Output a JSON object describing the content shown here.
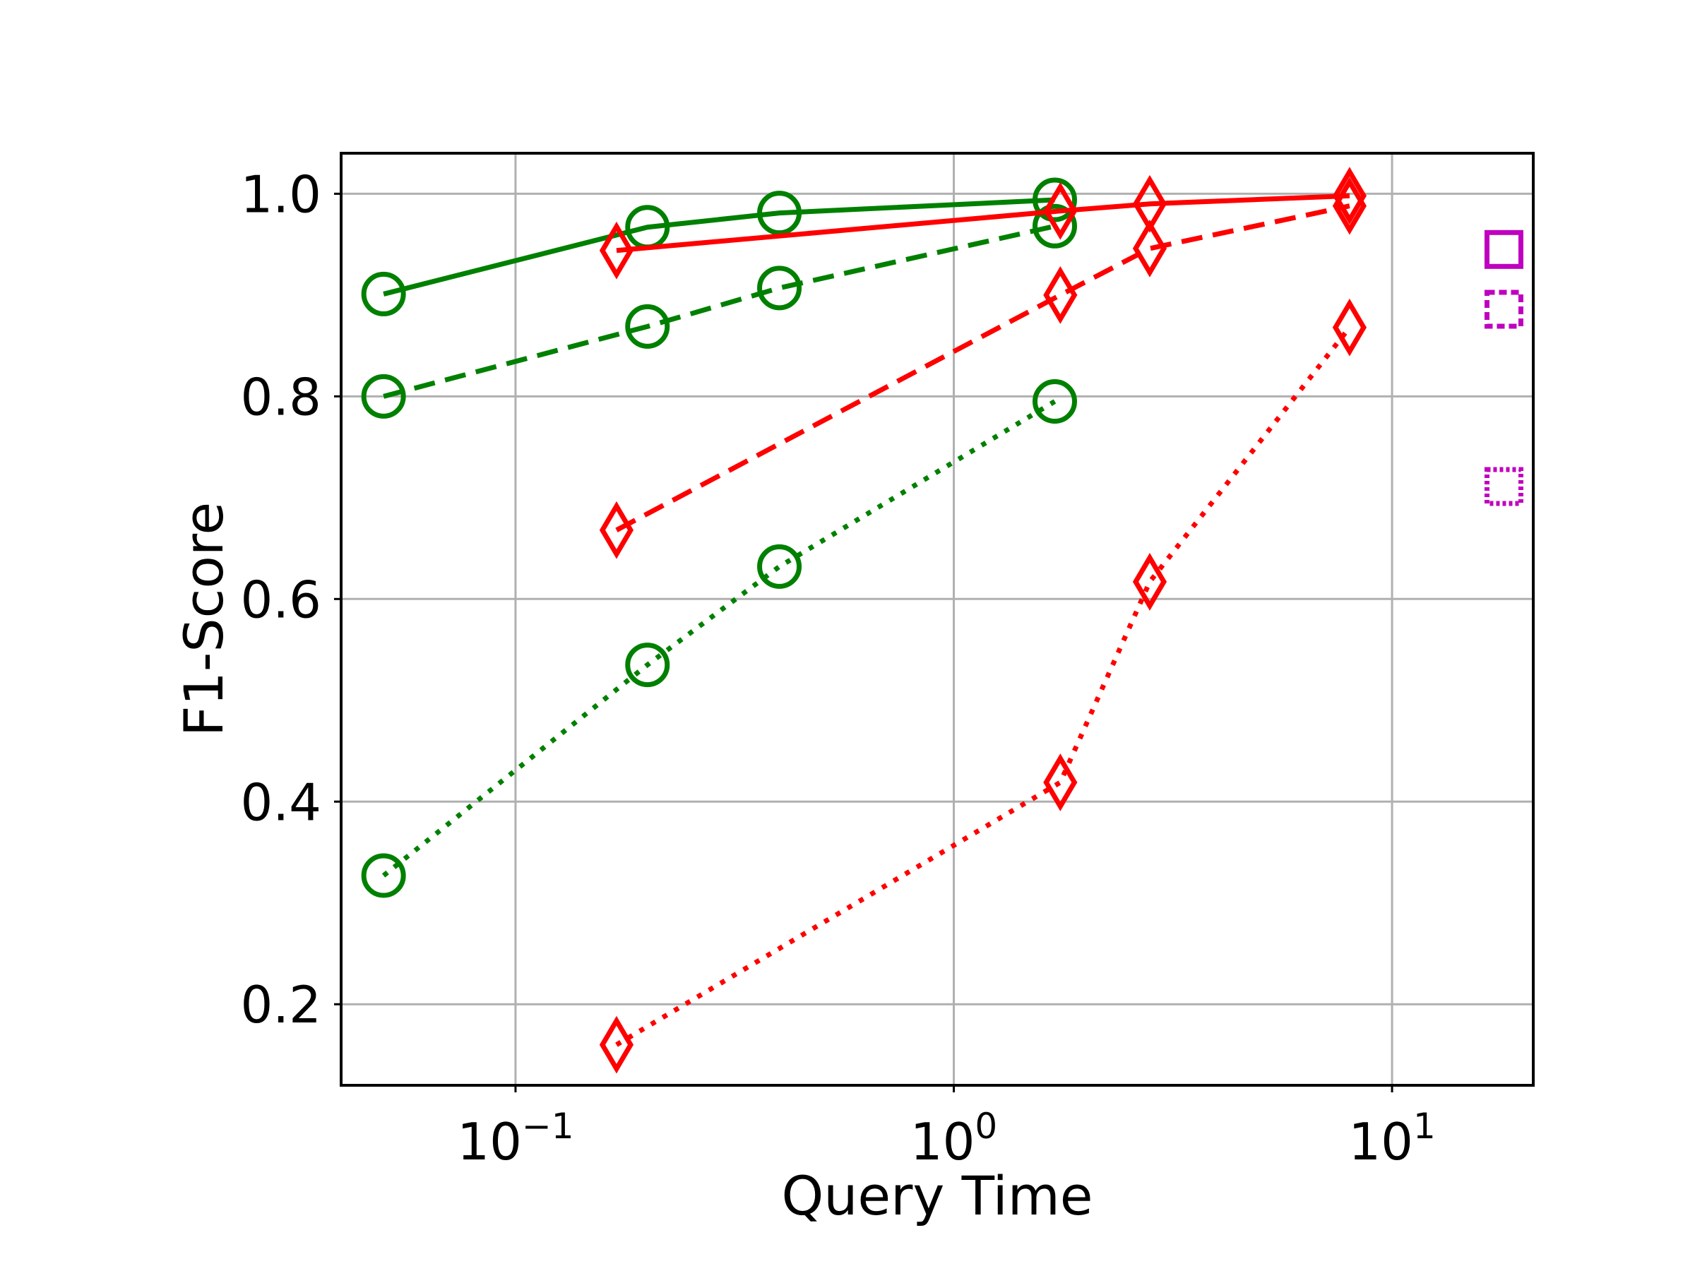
{
  "chart_data": {
    "type": "line",
    "title": "",
    "xlabel": "Query Time",
    "ylabel": "F1-Score",
    "x_scale": "log",
    "xlim": [
      0.04,
      21
    ],
    "ylim": [
      0.12,
      1.04
    ],
    "grid": true,
    "legend": "none",
    "x_ticks": [
      {
        "value": 0.1,
        "base": "10",
        "exp": "−1"
      },
      {
        "value": 1,
        "base": "10",
        "exp": "0"
      },
      {
        "value": 10,
        "base": "10",
        "exp": "1"
      }
    ],
    "y_ticks": [
      {
        "value": 0.2,
        "label": "0.2"
      },
      {
        "value": 0.4,
        "label": "0.4"
      },
      {
        "value": 0.6,
        "label": "0.6"
      },
      {
        "value": 0.8,
        "label": "0.8"
      },
      {
        "value": 1.0,
        "label": "1.0"
      }
    ],
    "series": [
      {
        "color": "#008000",
        "marker": "circle",
        "linestyle": "solid",
        "x": [
          0.05,
          0.2,
          0.4,
          1.7
        ],
        "y": [
          0.901,
          0.967,
          0.981,
          0.994
        ]
      },
      {
        "color": "#008000",
        "marker": "circle",
        "linestyle": "dashed",
        "x": [
          0.05,
          0.2,
          0.4,
          1.7
        ],
        "y": [
          0.8,
          0.869,
          0.907,
          0.968
        ]
      },
      {
        "color": "#008000",
        "marker": "circle",
        "linestyle": "dotted",
        "x": [
          0.05,
          0.2,
          0.4,
          1.7
        ],
        "y": [
          0.327,
          0.535,
          0.632,
          0.795
        ]
      },
      {
        "color": "#ff0000",
        "marker": "diamond",
        "linestyle": "solid",
        "x": [
          0.17,
          1.75,
          2.8,
          8.0
        ],
        "y": [
          0.944,
          0.983,
          0.99,
          0.998
        ]
      },
      {
        "color": "#ff0000",
        "marker": "diamond",
        "linestyle": "dashed",
        "x": [
          0.17,
          1.75,
          2.8,
          8.0
        ],
        "y": [
          0.668,
          0.9,
          0.946,
          0.988
        ]
      },
      {
        "color": "#ff0000",
        "marker": "diamond",
        "linestyle": "dotted",
        "x": [
          0.17,
          1.75,
          2.8,
          8.0
        ],
        "y": [
          0.16,
          0.419,
          0.617,
          0.868
        ]
      },
      {
        "color": "#bf00bf",
        "marker": "square",
        "linestyle": "solid",
        "x": [
          18
        ],
        "y": [
          0.945
        ]
      },
      {
        "color": "#bf00bf",
        "marker": "square",
        "linestyle": "dashed",
        "x": [
          18
        ],
        "y": [
          0.886
        ]
      },
      {
        "color": "#bf00bf",
        "marker": "square",
        "linestyle": "dotted",
        "x": [
          18
        ],
        "y": [
          0.711
        ]
      }
    ]
  }
}
